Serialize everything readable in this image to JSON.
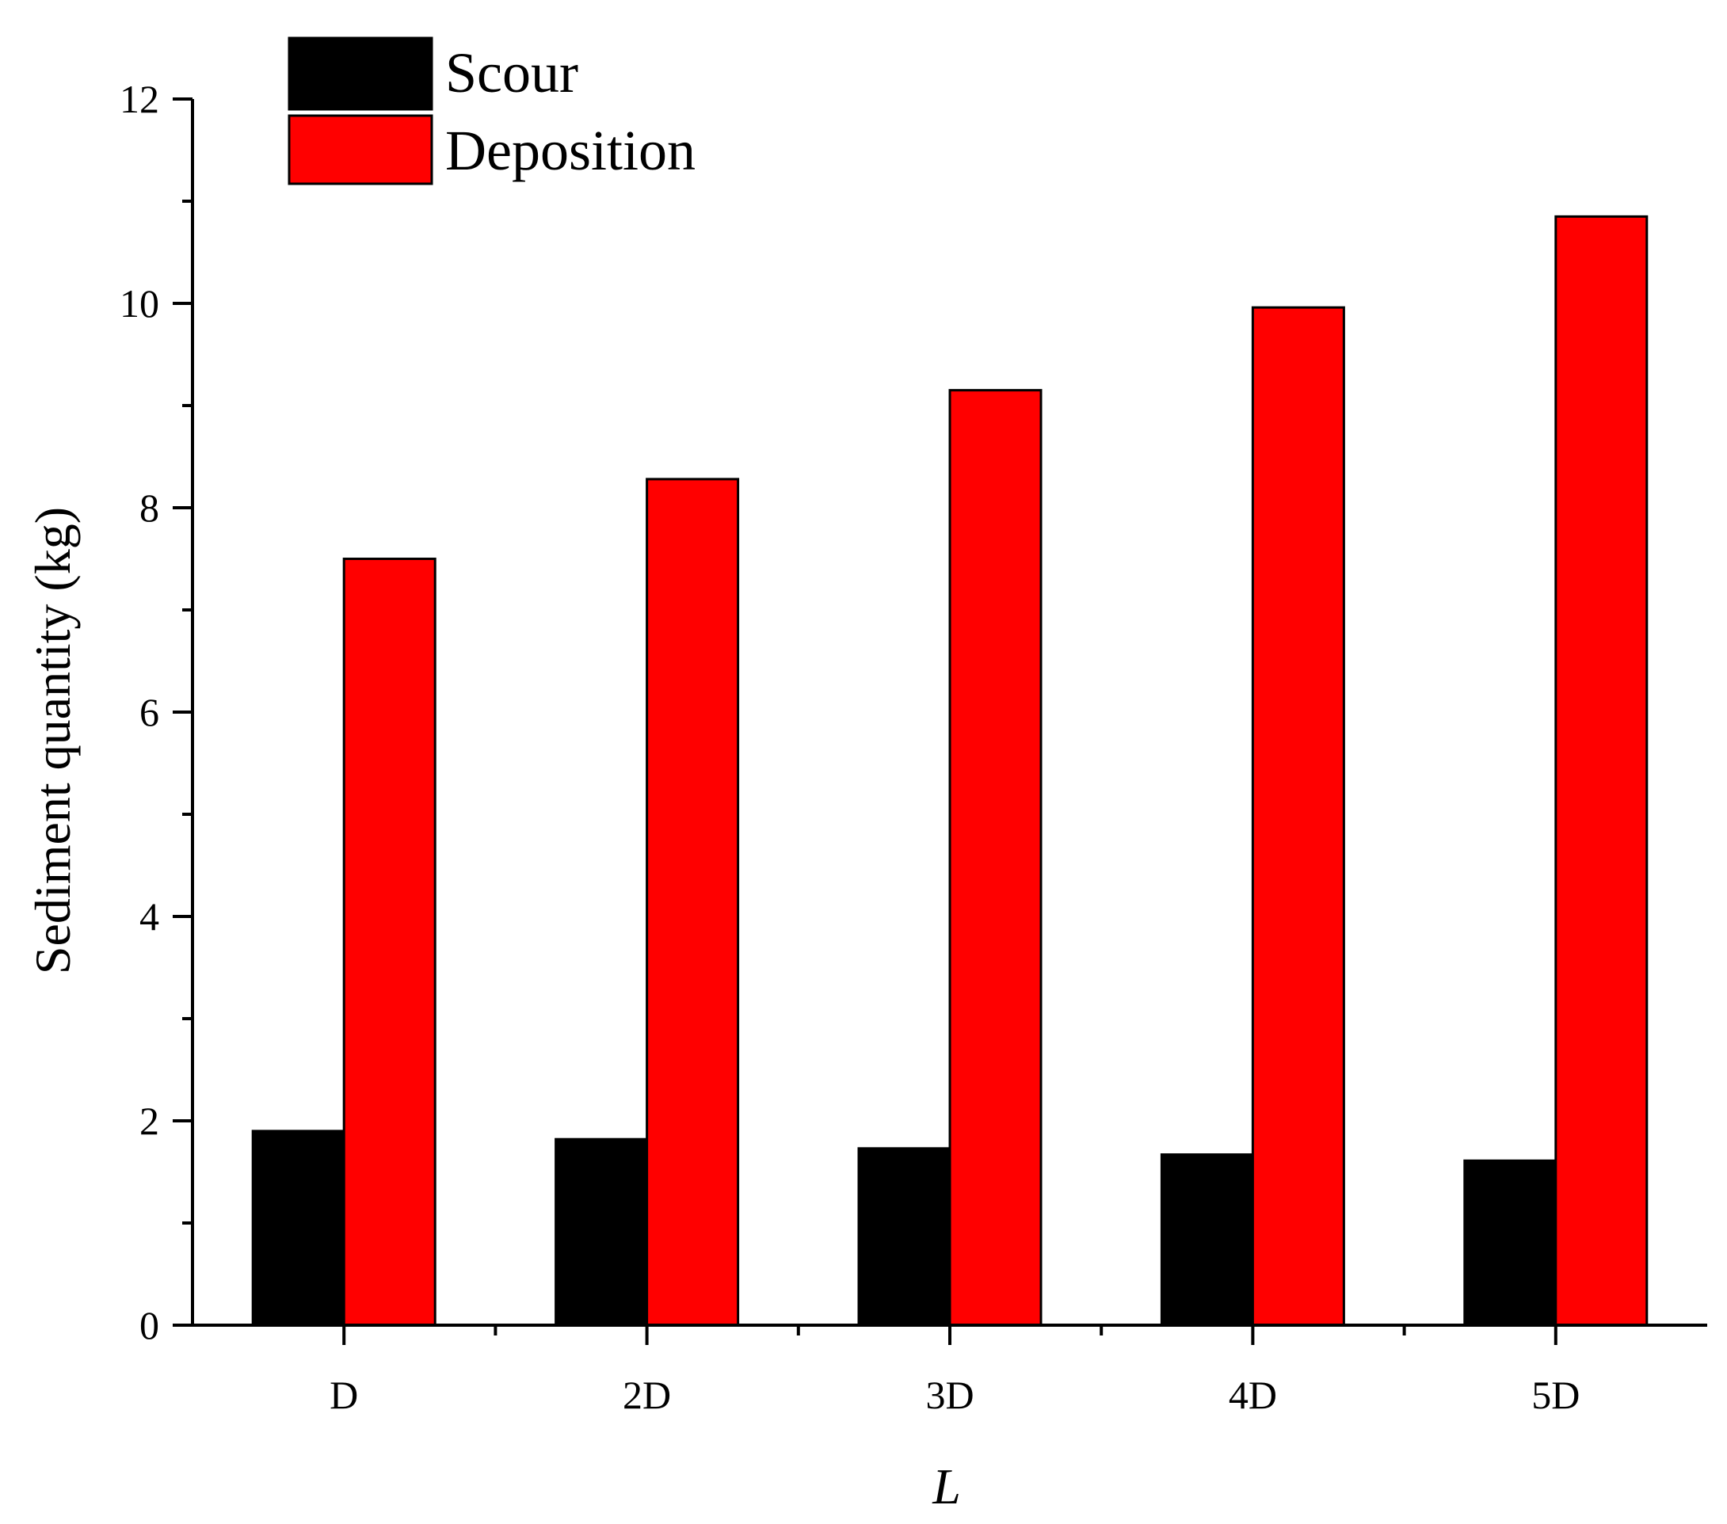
{
  "chart_data": {
    "type": "bar",
    "title": "",
    "xlabel": "L",
    "ylabel": "Sediment quantity (kg)",
    "categories": [
      "D",
      "2D",
      "3D",
      "4D",
      "5D"
    ],
    "series": [
      {
        "name": "Scour",
        "color": "#000000",
        "values": [
          1.9,
          1.82,
          1.73,
          1.67,
          1.61
        ]
      },
      {
        "name": "Deposition",
        "color": "#ff0000",
        "values": [
          7.5,
          8.28,
          9.15,
          9.96,
          10.85
        ]
      }
    ],
    "ylim": [
      0,
      12
    ],
    "yticks": [
      "0",
      "2",
      "4",
      "6",
      "8",
      "10",
      "12"
    ],
    "grid": false,
    "legend": "top-left"
  }
}
